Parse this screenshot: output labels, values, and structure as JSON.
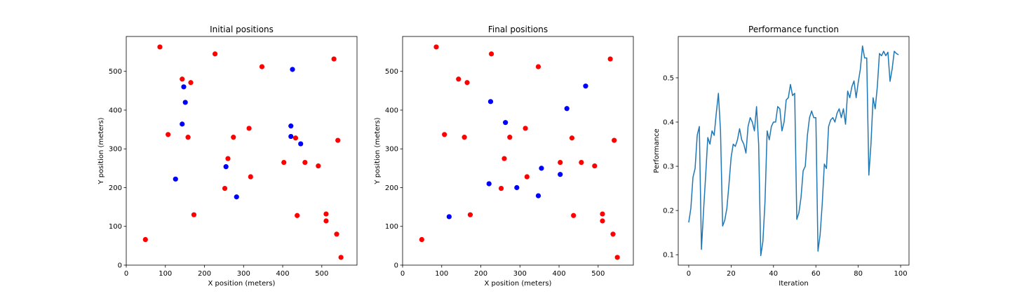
{
  "colors": {
    "red": "#ff0000",
    "blue": "#0000ff",
    "line": "#1f77b4"
  },
  "chart_data": [
    {
      "type": "scatter",
      "title": "Initial positions",
      "xlabel": "X position (meters)",
      "ylabel": "Y position (meters)",
      "xlim": [
        0,
        590
      ],
      "ylim": [
        0,
        590
      ],
      "xticks": [
        0,
        100,
        200,
        300,
        400,
        500
      ],
      "yticks": [
        0,
        100,
        200,
        300,
        400,
        500
      ],
      "series": [
        {
          "color": "red",
          "points": [
            [
              86,
              563
            ],
            [
              227,
              545
            ],
            [
              347,
              512
            ],
            [
              531,
              532
            ],
            [
              143,
              480
            ],
            [
              165,
              471
            ],
            [
              314,
              353
            ],
            [
              107,
              337
            ],
            [
              158,
              330
            ],
            [
              274,
              330
            ],
            [
              433,
              328
            ],
            [
              541,
              322
            ],
            [
              260,
              275
            ],
            [
              403,
              265
            ],
            [
              457,
              265
            ],
            [
              491,
              256
            ],
            [
              318,
              228
            ],
            [
              252,
              198
            ],
            [
              173,
              130
            ],
            [
              511,
              132
            ],
            [
              437,
              128
            ],
            [
              511,
              114
            ],
            [
              538,
              80
            ],
            [
              49,
              66
            ],
            [
              549,
              20
            ]
          ]
        },
        {
          "color": "blue",
          "points": [
            [
              425,
              505
            ],
            [
              147,
              460
            ],
            [
              151,
              420
            ],
            [
              143,
              364
            ],
            [
              421,
              359
            ],
            [
              421,
              332
            ],
            [
              446,
              313
            ],
            [
              255,
              254
            ],
            [
              126,
              222
            ],
            [
              282,
              176
            ]
          ]
        }
      ]
    },
    {
      "type": "scatter",
      "title": "Final positions",
      "xlabel": "X position (meters)",
      "ylabel": "Y position (meters)",
      "xlim": [
        0,
        590
      ],
      "ylim": [
        0,
        590
      ],
      "xticks": [
        0,
        100,
        200,
        300,
        400,
        500
      ],
      "yticks": [
        0,
        100,
        200,
        300,
        400,
        500
      ],
      "series": [
        {
          "color": "red",
          "points": [
            [
              86,
              563
            ],
            [
              227,
              545
            ],
            [
              347,
              512
            ],
            [
              531,
              532
            ],
            [
              143,
              480
            ],
            [
              165,
              471
            ],
            [
              314,
              353
            ],
            [
              107,
              337
            ],
            [
              158,
              330
            ],
            [
              274,
              330
            ],
            [
              433,
              328
            ],
            [
              541,
              322
            ],
            [
              260,
              275
            ],
            [
              403,
              265
            ],
            [
              457,
              265
            ],
            [
              491,
              256
            ],
            [
              318,
              228
            ],
            [
              252,
              198
            ],
            [
              173,
              130
            ],
            [
              511,
              132
            ],
            [
              437,
              128
            ],
            [
              511,
              114
            ],
            [
              538,
              80
            ],
            [
              49,
              66
            ],
            [
              549,
              20
            ]
          ]
        },
        {
          "color": "blue",
          "points": [
            [
              468,
              462
            ],
            [
              225,
              422
            ],
            [
              420,
              404
            ],
            [
              263,
              368
            ],
            [
              355,
              250
            ],
            [
              403,
              234
            ],
            [
              221,
              210
            ],
            [
              292,
              200
            ],
            [
              347,
              179
            ],
            [
              119,
              125
            ]
          ]
        }
      ]
    },
    {
      "type": "line",
      "title": "Performance function",
      "xlabel": "Iteration",
      "ylabel": "Performance",
      "xlim": [
        -4.95,
        103.95
      ],
      "ylim": [
        0.0765,
        0.5935
      ],
      "xticks": [
        0,
        20,
        40,
        60,
        80,
        100
      ],
      "yticks": [
        0.1,
        0.2,
        0.3,
        0.4,
        0.5
      ],
      "ytick_labels": [
        "0.1",
        "0.2",
        "0.3",
        "0.4",
        "0.5"
      ],
      "series": [
        {
          "color": "line",
          "x": [
            0,
            1,
            2,
            3,
            4,
            5,
            6,
            7,
            8,
            9,
            10,
            11,
            12,
            13,
            14,
            15,
            16,
            17,
            18,
            19,
            20,
            21,
            22,
            23,
            24,
            25,
            26,
            27,
            28,
            29,
            30,
            31,
            32,
            33,
            34,
            35,
            36,
            37,
            38,
            39,
            40,
            41,
            42,
            43,
            44,
            45,
            46,
            47,
            48,
            49,
            50,
            51,
            52,
            53,
            54,
            55,
            56,
            57,
            58,
            59,
            60,
            61,
            62,
            63,
            64,
            65,
            66,
            67,
            68,
            69,
            70,
            71,
            72,
            73,
            74,
            75,
            76,
            77,
            78,
            79,
            80,
            81,
            82,
            83,
            84,
            85,
            86,
            87,
            88,
            89,
            90,
            91,
            92,
            93,
            94,
            95,
            96,
            97,
            98,
            99
          ],
          "values": [
            0.173,
            0.205,
            0.275,
            0.295,
            0.37,
            0.39,
            0.112,
            0.2,
            0.28,
            0.365,
            0.35,
            0.38,
            0.37,
            0.42,
            0.465,
            0.38,
            0.165,
            0.178,
            0.205,
            0.26,
            0.32,
            0.35,
            0.345,
            0.36,
            0.385,
            0.36,
            0.35,
            0.33,
            0.39,
            0.41,
            0.4,
            0.38,
            0.435,
            0.35,
            0.098,
            0.13,
            0.22,
            0.38,
            0.36,
            0.39,
            0.4,
            0.4,
            0.435,
            0.43,
            0.38,
            0.4,
            0.45,
            0.455,
            0.485,
            0.46,
            0.465,
            0.18,
            0.195,
            0.23,
            0.29,
            0.3,
            0.37,
            0.41,
            0.425,
            0.41,
            0.41,
            0.108,
            0.145,
            0.215,
            0.305,
            0.295,
            0.39,
            0.405,
            0.41,
            0.4,
            0.42,
            0.43,
            0.41,
            0.43,
            0.395,
            0.47,
            0.455,
            0.48,
            0.493,
            0.455,
            0.49,
            0.52,
            0.572,
            0.545,
            0.545,
            0.28,
            0.35,
            0.455,
            0.43,
            0.48,
            0.555,
            0.55,
            0.56,
            0.55,
            0.558,
            0.492,
            0.52,
            0.56,
            0.555,
            0.552
          ]
        }
      ]
    }
  ]
}
